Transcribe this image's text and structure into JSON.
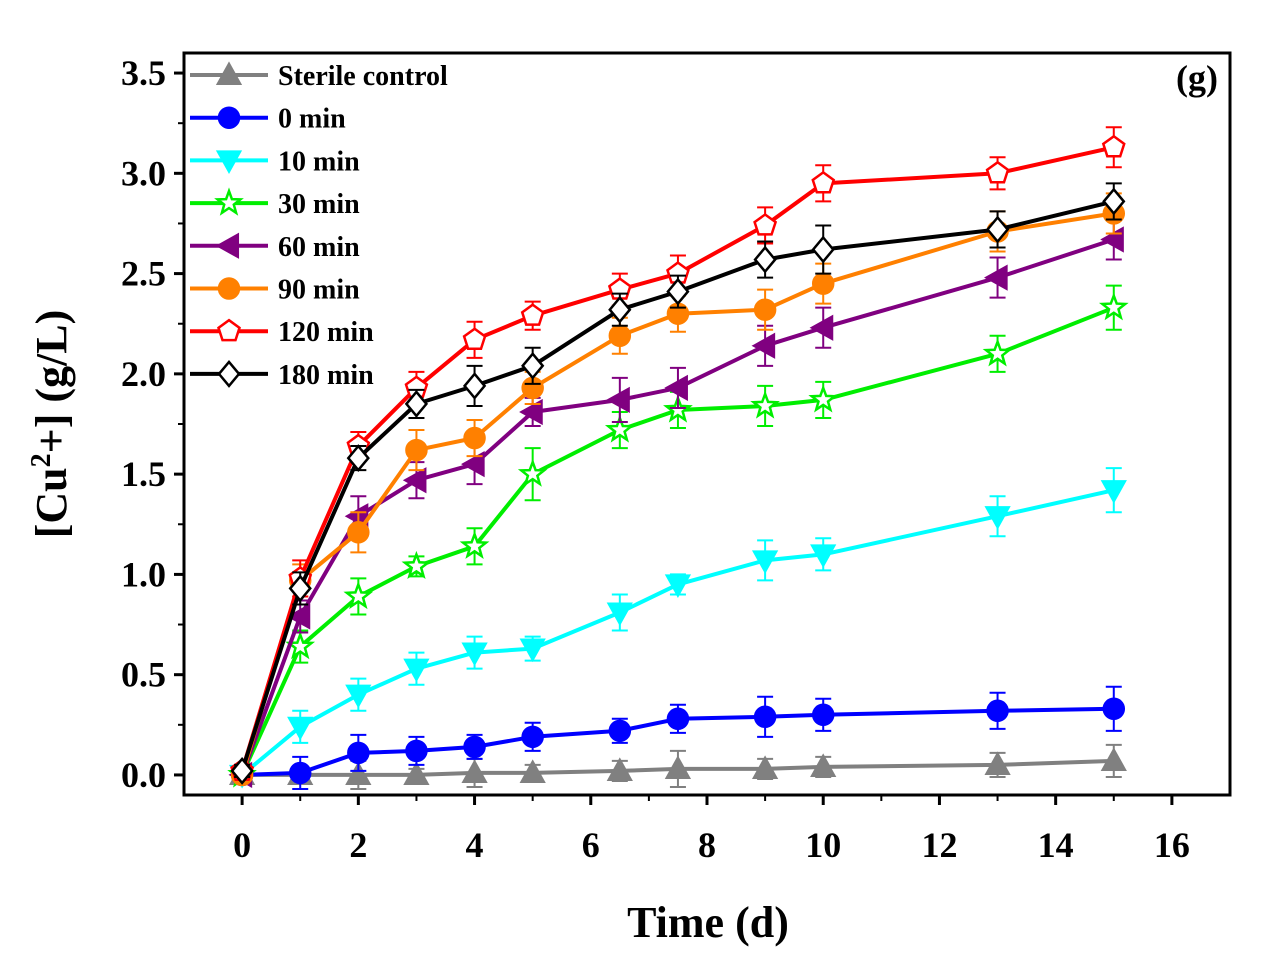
{
  "chart_data": {
    "type": "line",
    "panel_label": "(g)",
    "xlabel": "Time (d)",
    "ylabel": {
      "prefix": "[Cu",
      "sup": "2",
      "suffix": "+] (g/L)"
    },
    "xlim": [
      -1,
      17
    ],
    "ylim": [
      -0.1,
      3.6
    ],
    "x_ticks": [
      0,
      2,
      4,
      6,
      8,
      10,
      12,
      14,
      16
    ],
    "x_tick_labels": [
      "0",
      "2",
      "4",
      "6",
      "8",
      "10",
      "12",
      "14",
      "16"
    ],
    "y_ticks": [
      0.0,
      0.5,
      1.0,
      1.5,
      2.0,
      2.5,
      3.0,
      3.5
    ],
    "y_tick_labels": [
      "0.0",
      "0.5",
      "1.0",
      "1.5",
      "2.0",
      "2.5",
      "3.0",
      "3.5"
    ],
    "grid": false,
    "legend_position": "top-left",
    "x": [
      0,
      1,
      2,
      3,
      4,
      5,
      6.5,
      7.5,
      9,
      10,
      13,
      15
    ],
    "series": [
      {
        "name": "Sterile control",
        "color": "#808080",
        "marker": "triangle-up",
        "filled": true,
        "values": [
          0.0,
          0.0,
          0.0,
          0.0,
          0.01,
          0.01,
          0.02,
          0.03,
          0.03,
          0.04,
          0.05,
          0.07
        ],
        "errors": [
          0.03,
          0.03,
          0.07,
          0.03,
          0.07,
          0.04,
          0.05,
          0.09,
          0.05,
          0.05,
          0.06,
          0.08
        ]
      },
      {
        "name": "0 min",
        "color": "#0000ff",
        "marker": "circle",
        "filled": true,
        "values": [
          0.0,
          0.01,
          0.11,
          0.12,
          0.14,
          0.19,
          0.22,
          0.28,
          0.29,
          0.3,
          0.32,
          0.33
        ],
        "errors": [
          0.03,
          0.08,
          0.09,
          0.07,
          0.06,
          0.07,
          0.06,
          0.07,
          0.1,
          0.08,
          0.09,
          0.11
        ]
      },
      {
        "name": "10 min",
        "color": "#00ffff",
        "marker": "triangle-down",
        "filled": true,
        "values": [
          0.0,
          0.24,
          0.4,
          0.53,
          0.61,
          0.63,
          0.81,
          0.95,
          1.07,
          1.1,
          1.29,
          1.42
        ],
        "errors": [
          0.03,
          0.08,
          0.08,
          0.08,
          0.08,
          0.06,
          0.09,
          0.05,
          0.1,
          0.08,
          0.1,
          0.11
        ]
      },
      {
        "name": "30 min",
        "color": "#00ee00",
        "marker": "star",
        "filled": false,
        "values": [
          0.0,
          0.64,
          0.89,
          1.04,
          1.14,
          1.5,
          1.72,
          1.82,
          1.84,
          1.87,
          2.1,
          2.33
        ],
        "errors": [
          0.03,
          0.08,
          0.09,
          0.05,
          0.09,
          0.13,
          0.09,
          0.09,
          0.1,
          0.09,
          0.09,
          0.11
        ]
      },
      {
        "name": "60 min",
        "color": "#800080",
        "marker": "triangle-left",
        "filled": true,
        "values": [
          0.0,
          0.79,
          1.29,
          1.47,
          1.55,
          1.81,
          1.87,
          1.93,
          2.14,
          2.23,
          2.48,
          2.67
        ],
        "errors": [
          0.03,
          0.08,
          0.1,
          0.09,
          0.1,
          0.07,
          0.11,
          0.1,
          0.1,
          0.1,
          0.1,
          0.1
        ]
      },
      {
        "name": "90 min",
        "color": "#ff8000",
        "marker": "circle",
        "filled": true,
        "values": [
          0.0,
          0.97,
          1.21,
          1.62,
          1.68,
          1.93,
          2.19,
          2.3,
          2.32,
          2.45,
          2.71,
          2.8
        ],
        "errors": [
          0.03,
          0.08,
          0.1,
          0.1,
          0.09,
          0.08,
          0.09,
          0.09,
          0.1,
          0.1,
          0.1,
          0.1
        ]
      },
      {
        "name": "120 min",
        "color": "#ff0000",
        "marker": "pentagon",
        "filled": false,
        "values": [
          0.02,
          0.98,
          1.64,
          1.93,
          2.17,
          2.29,
          2.42,
          2.5,
          2.74,
          2.95,
          3.0,
          3.13
        ],
        "errors": [
          0.03,
          0.09,
          0.07,
          0.08,
          0.09,
          0.07,
          0.08,
          0.09,
          0.09,
          0.09,
          0.08,
          0.1
        ]
      },
      {
        "name": "180 min",
        "color": "#000000",
        "marker": "diamond",
        "filled": false,
        "values": [
          0.02,
          0.93,
          1.58,
          1.85,
          1.94,
          2.04,
          2.32,
          2.41,
          2.57,
          2.62,
          2.72,
          2.86
        ],
        "errors": [
          0.03,
          0.08,
          0.06,
          0.07,
          0.1,
          0.09,
          0.08,
          0.08,
          0.09,
          0.12,
          0.09,
          0.09
        ]
      }
    ]
  }
}
